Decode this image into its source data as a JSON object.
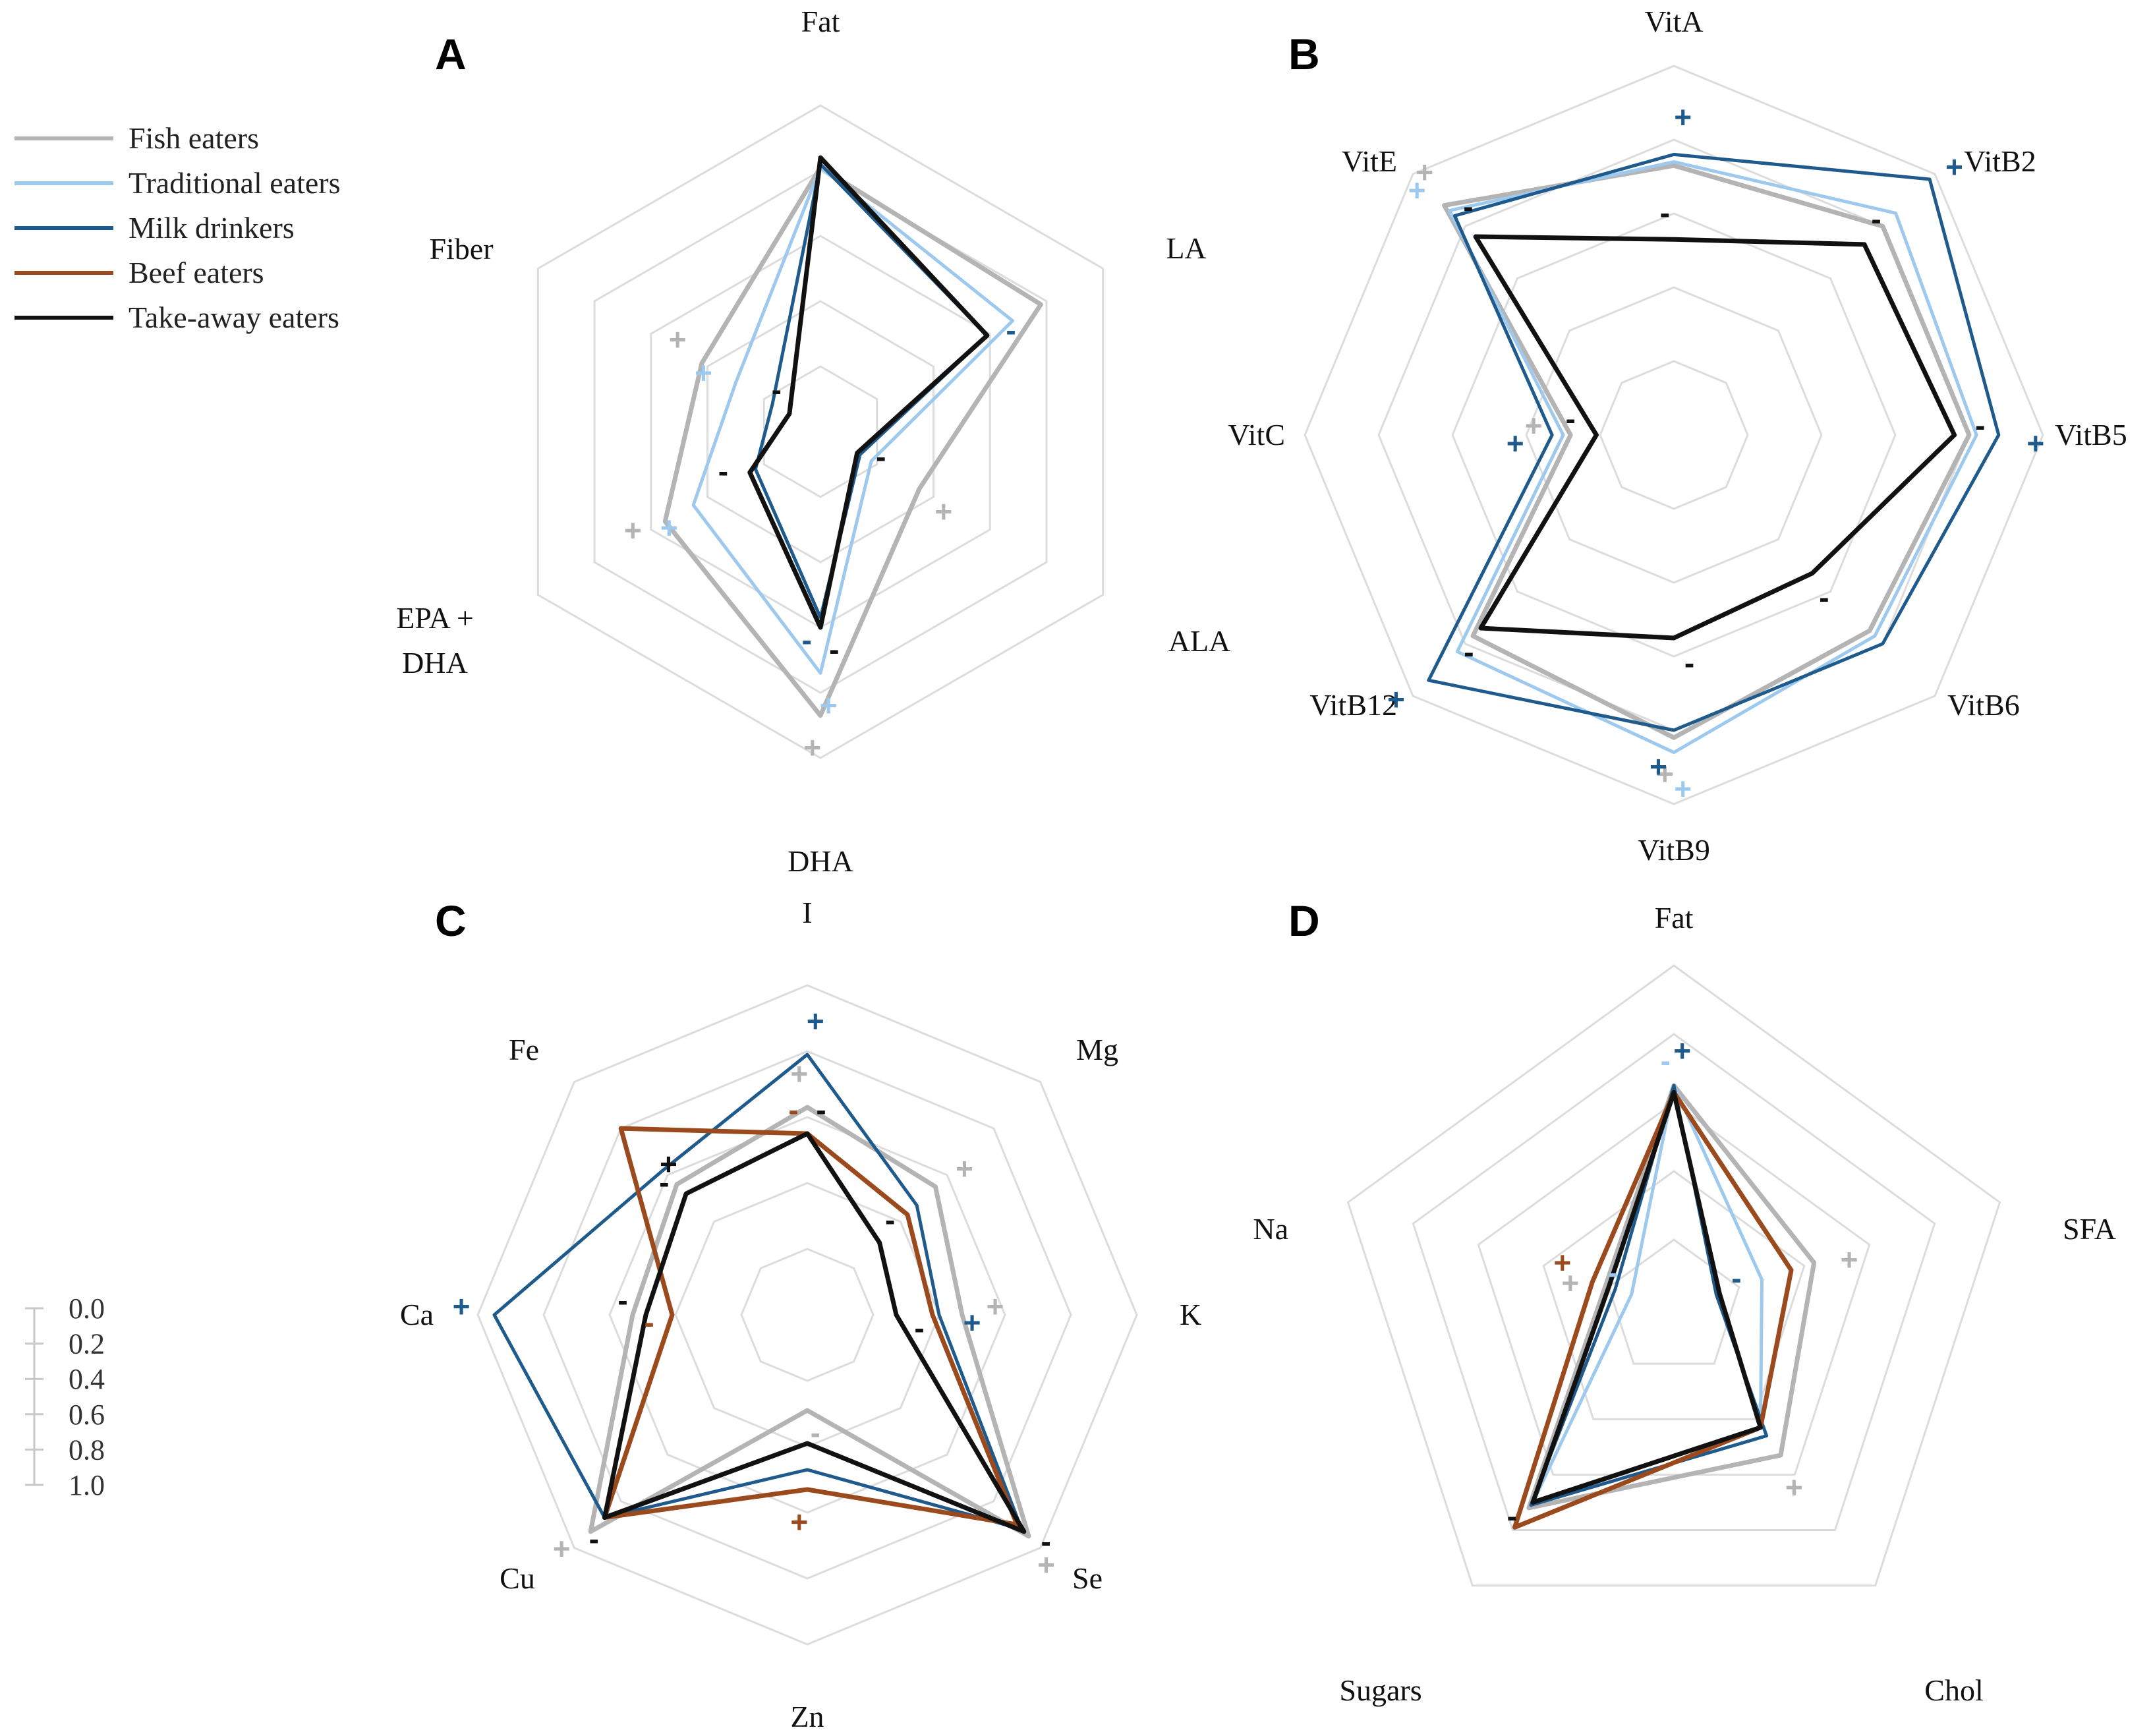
{
  "legend": [
    {
      "name": "Fish eaters",
      "color": "#b4b4b4"
    },
    {
      "name": "Traditional eaters",
      "color": "#9ec9ee"
    },
    {
      "name": "Milk drinkers",
      "color": "#1f5a8c"
    },
    {
      "name": "Beef eaters",
      "color": "#9a4a1c"
    },
    {
      "name": "Take-away eaters",
      "color": "#111111"
    }
  ],
  "scale": {
    "ticks": [
      "0.0",
      "0.2",
      "0.4",
      "0.6",
      "0.8",
      "1.0"
    ]
  },
  "chart_data": [
    {
      "panel": "A",
      "type": "radar",
      "axes": [
        "Fat",
        "LA",
        "ALA",
        "DHA",
        "EPA + DHA",
        "Fiber"
      ],
      "range": [
        0,
        1
      ],
      "series": [
        {
          "name": "Fish eaters",
          "values": [
            0.81,
            0.78,
            0.35,
            0.87,
            0.55,
            0.42
          ]
        },
        {
          "name": "Traditional eaters",
          "values": [
            0.81,
            0.68,
            0.18,
            0.74,
            0.45,
            0.3
          ]
        },
        {
          "name": "Milk drinkers",
          "values": [
            0.82,
            0.59,
            0.14,
            0.57,
            0.23,
            0.17
          ]
        },
        {
          "name": "Take-away eaters",
          "values": [
            0.84,
            0.59,
            0.13,
            0.6,
            0.25,
            0.11
          ]
        }
      ],
      "marks": [
        {
          "axis": "LA",
          "text": "-",
          "series": "Milk drinkers"
        },
        {
          "axis": "ALA",
          "text": "+",
          "series": "Fish eaters"
        },
        {
          "axis": "ALA",
          "text": "-",
          "series": "Take-away eaters"
        },
        {
          "axis": "DHA",
          "text": "+",
          "series": "Fish eaters"
        },
        {
          "axis": "DHA",
          "text": "+",
          "series": "Traditional eaters"
        },
        {
          "axis": "DHA",
          "text": "-",
          "series": "Milk drinkers"
        },
        {
          "axis": "DHA",
          "text": "-",
          "series": "Take-away eaters"
        },
        {
          "axis": "EPA + DHA",
          "text": "+",
          "series": "Fish eaters"
        },
        {
          "axis": "EPA + DHA",
          "text": "+",
          "series": "Traditional eaters"
        },
        {
          "axis": "EPA + DHA",
          "text": "-",
          "series": "Take-away eaters"
        },
        {
          "axis": "Fiber",
          "text": "+",
          "series": "Fish eaters"
        },
        {
          "axis": "Fiber",
          "text": "+",
          "series": "Traditional eaters"
        },
        {
          "axis": "Fiber",
          "text": "-",
          "series": "Take-away eaters"
        }
      ]
    },
    {
      "panel": "B",
      "type": "radar",
      "axes": [
        "VitA",
        "VitB2",
        "VitB5",
        "VitB6",
        "VitB9",
        "VitB12",
        "VitC",
        "VitE"
      ],
      "range": [
        0,
        1
      ],
      "series": [
        {
          "name": "Fish eaters",
          "values": [
            0.73,
            0.8,
            0.8,
            0.75,
            0.82,
            0.77,
            0.28,
            0.88
          ]
        },
        {
          "name": "Traditional eaters",
          "values": [
            0.74,
            0.85,
            0.82,
            0.77,
            0.86,
            0.83,
            0.3,
            0.86
          ]
        },
        {
          "name": "Milk drinkers",
          "values": [
            0.76,
            0.98,
            0.88,
            0.8,
            0.8,
            0.94,
            0.33,
            0.84
          ]
        },
        {
          "name": "Take-away eaters",
          "values": [
            0.53,
            0.73,
            0.76,
            0.53,
            0.55,
            0.74,
            0.21,
            0.76
          ]
        }
      ],
      "marks": [
        {
          "axis": "VitA",
          "text": "+",
          "series": "Milk drinkers"
        },
        {
          "axis": "VitA",
          "text": "-",
          "series": "Take-away eaters"
        },
        {
          "axis": "VitB2",
          "text": "+",
          "series": "Milk drinkers"
        },
        {
          "axis": "VitB2",
          "text": "-",
          "series": "Take-away eaters"
        },
        {
          "axis": "VitB5",
          "text": "+",
          "series": "Milk drinkers"
        },
        {
          "axis": "VitB5",
          "text": "-",
          "series": "Take-away eaters"
        },
        {
          "axis": "VitB6",
          "text": "-",
          "series": "Take-away eaters"
        },
        {
          "axis": "VitB9",
          "text": "+",
          "series": "Fish eaters"
        },
        {
          "axis": "VitB9",
          "text": "+",
          "series": "Traditional eaters"
        },
        {
          "axis": "VitB9",
          "text": "+",
          "series": "Milk drinkers"
        },
        {
          "axis": "VitB9",
          "text": "-",
          "series": "Take-away eaters"
        },
        {
          "axis": "VitB12",
          "text": "+",
          "series": "Milk drinkers"
        },
        {
          "axis": "VitB12",
          "text": "-",
          "series": "Take-away eaters"
        },
        {
          "axis": "VitC",
          "text": "+",
          "series": "Fish eaters"
        },
        {
          "axis": "VitC",
          "text": "+",
          "series": "Milk drinkers"
        },
        {
          "axis": "VitC",
          "text": "-",
          "series": "Take-away eaters"
        },
        {
          "axis": "VitE",
          "text": "+",
          "series": "Fish eaters"
        },
        {
          "axis": "VitE",
          "text": "+",
          "series": "Traditional eaters"
        },
        {
          "axis": "VitE",
          "text": "-",
          "series": "Take-away eaters"
        }
      ]
    },
    {
      "panel": "C",
      "type": "radar",
      "axes": [
        "I",
        "Mg",
        "K",
        "Se",
        "Zn",
        "Cu",
        "Ca",
        "Fe"
      ],
      "range": [
        0,
        1
      ],
      "series": [
        {
          "name": "Fish eaters",
          "values": [
            0.63,
            0.55,
            0.47,
            0.95,
            0.29,
            0.93,
            0.53,
            0.56
          ]
        },
        {
          "name": "Milk drinkers",
          "values": [
            0.79,
            0.47,
            0.4,
            0.92,
            0.47,
            0.87,
            0.95,
            0.62
          ]
        },
        {
          "name": "Beef eaters",
          "values": [
            0.55,
            0.43,
            0.38,
            0.9,
            0.53,
            0.87,
            0.41,
            0.8
          ]
        },
        {
          "name": "Take-away eaters",
          "values": [
            0.55,
            0.31,
            0.27,
            0.93,
            0.39,
            0.87,
            0.49,
            0.52
          ]
        }
      ],
      "marks": [
        {
          "axis": "I",
          "text": "+",
          "series": "Milk drinkers"
        },
        {
          "axis": "I",
          "text": "+",
          "series": "Fish eaters"
        },
        {
          "axis": "I",
          "text": "-",
          "series": "Take-away eaters"
        },
        {
          "axis": "I",
          "text": "-",
          "series": "Beef eaters"
        },
        {
          "axis": "Mg",
          "text": "+",
          "series": "Fish eaters"
        },
        {
          "axis": "Mg",
          "text": "-",
          "series": "Take-away eaters"
        },
        {
          "axis": "K",
          "text": "+",
          "series": "Milk drinkers"
        },
        {
          "axis": "K",
          "text": "+",
          "series": "Fish eaters"
        },
        {
          "axis": "K",
          "text": "-",
          "series": "Take-away eaters"
        },
        {
          "axis": "Se",
          "text": "+",
          "series": "Fish eaters"
        },
        {
          "axis": "Se",
          "text": "-",
          "series": "Take-away eaters"
        },
        {
          "axis": "Zn",
          "text": "+",
          "series": "Beef eaters"
        },
        {
          "axis": "Zn",
          "text": "-",
          "series": "Fish eaters"
        },
        {
          "axis": "Cu",
          "text": "+",
          "series": "Fish eaters"
        },
        {
          "axis": "Cu",
          "text": "-",
          "series": "Take-away eaters"
        },
        {
          "axis": "Ca",
          "text": "+",
          "series": "Milk drinkers"
        },
        {
          "axis": "Ca",
          "text": "-",
          "series": "Beef eaters"
        },
        {
          "axis": "Ca",
          "text": "-",
          "series": "Take-away eaters"
        },
        {
          "axis": "Fe",
          "text": "+",
          "series": "Take-away eaters"
        },
        {
          "axis": "Fe",
          "text": "-",
          "series": "Take-away eaters"
        }
      ]
    },
    {
      "panel": "D",
      "type": "radar",
      "axes": [
        "Fat",
        "SFA",
        "Chol",
        "Sugars",
        "Na"
      ],
      "range": [
        0,
        1
      ],
      "series": [
        {
          "name": "Fish eaters",
          "values": [
            0.65,
            0.43,
            0.53,
            0.72,
            0.21
          ]
        },
        {
          "name": "Traditional eaters",
          "values": [
            0.65,
            0.27,
            0.43,
            0.7,
            0.13
          ]
        },
        {
          "name": "Milk drinkers",
          "values": [
            0.65,
            0.13,
            0.46,
            0.71,
            0.18
          ]
        },
        {
          "name": "Beef eaters",
          "values": [
            0.63,
            0.36,
            0.43,
            0.79,
            0.25
          ]
        },
        {
          "name": "Take-away eaters",
          "values": [
            0.63,
            0.14,
            0.43,
            0.7,
            0.2
          ]
        }
      ],
      "marks": [
        {
          "axis": "Fat",
          "text": "+",
          "series": "Milk drinkers"
        },
        {
          "axis": "Fat",
          "text": "-",
          "series": "Traditional eaters"
        },
        {
          "axis": "SFA",
          "text": "+",
          "series": "Fish eaters"
        },
        {
          "axis": "SFA",
          "text": "-",
          "series": "Milk drinkers"
        },
        {
          "axis": "Chol",
          "text": "+",
          "series": "Fish eaters"
        },
        {
          "axis": "Sugars",
          "text": "-",
          "series": "Take-away eaters"
        },
        {
          "axis": "Na",
          "text": "+",
          "series": "Beef eaters"
        },
        {
          "axis": "Na",
          "text": "+",
          "series": "Fish eaters"
        },
        {
          "axis": "Na",
          "text": "-",
          "series": "Traditional eaters"
        }
      ]
    }
  ]
}
